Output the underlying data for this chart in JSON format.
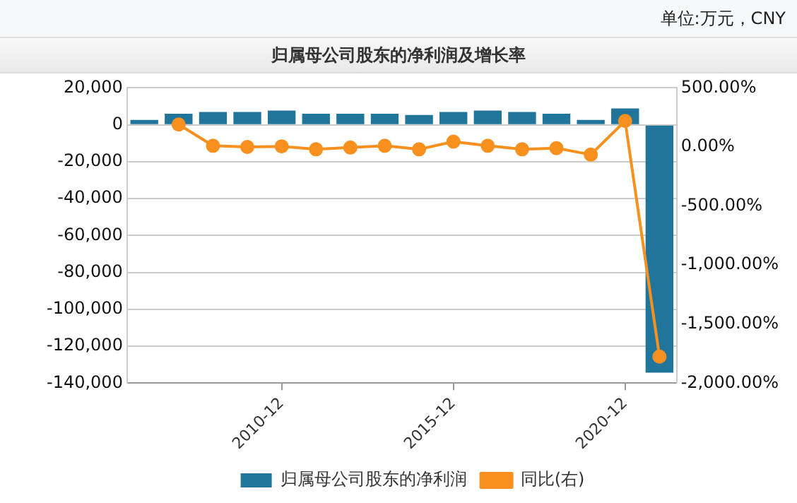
{
  "chart_data": {
    "type": "bar",
    "title": "归属母公司股东的净利润及增长率",
    "annotations": [
      "单位:万元，CNY"
    ],
    "categories": [
      null,
      null,
      null,
      null,
      "2010-12",
      null,
      null,
      null,
      null,
      "2015-12",
      null,
      null,
      null,
      null,
      "2020-12",
      null
    ],
    "series": [
      {
        "name": "归属母公司股东的净利润",
        "color": "#21759b",
        "values": [
          2600,
          6000,
          6900,
          6900,
          7700,
          6000,
          6000,
          6000,
          5300,
          6900,
          7700,
          6900,
          6000,
          2600,
          8900,
          -134300
        ]
      },
      {
        "name": "同比(右)",
        "type": "line",
        "axis": "y2",
        "color": "#f7901e",
        "marker": "circle",
        "values": [
          null,
          190,
          10,
          0,
          5,
          -20,
          -5,
          10,
          -20,
          45,
          10,
          -20,
          -10,
          -65,
          220,
          -1775
        ]
      }
    ],
    "ylim": [
      -140000,
      20000
    ],
    "yticks": [
      {
        "value": -140000,
        "label": "-140,000"
      },
      {
        "value": -120000,
        "label": "-120,000"
      },
      {
        "value": -100000,
        "label": "-100,000"
      },
      {
        "value": -80000,
        "label": "-80,000"
      },
      {
        "value": -60000,
        "label": "-60,000"
      },
      {
        "value": -40000,
        "label": "-40,000"
      },
      {
        "value": -20000,
        "label": "-20,000"
      },
      0,
      {
        "value": 20000,
        "label": "20,000"
      }
    ],
    "y2lim": [
      -2000,
      500
    ],
    "y2ticks": [
      {
        "value": -2000,
        "label": "-2,000.00%"
      },
      {
        "value": -1500,
        "label": "-1,500.00%"
      },
      {
        "value": -1000,
        "label": "-1,000.00%"
      },
      {
        "value": -500,
        "label": "-500.00%"
      },
      {
        "value": 0,
        "label": "0.00%"
      },
      {
        "value": 500,
        "label": "500.00%"
      }
    ],
    "grid": "y",
    "legend": "bottom"
  }
}
